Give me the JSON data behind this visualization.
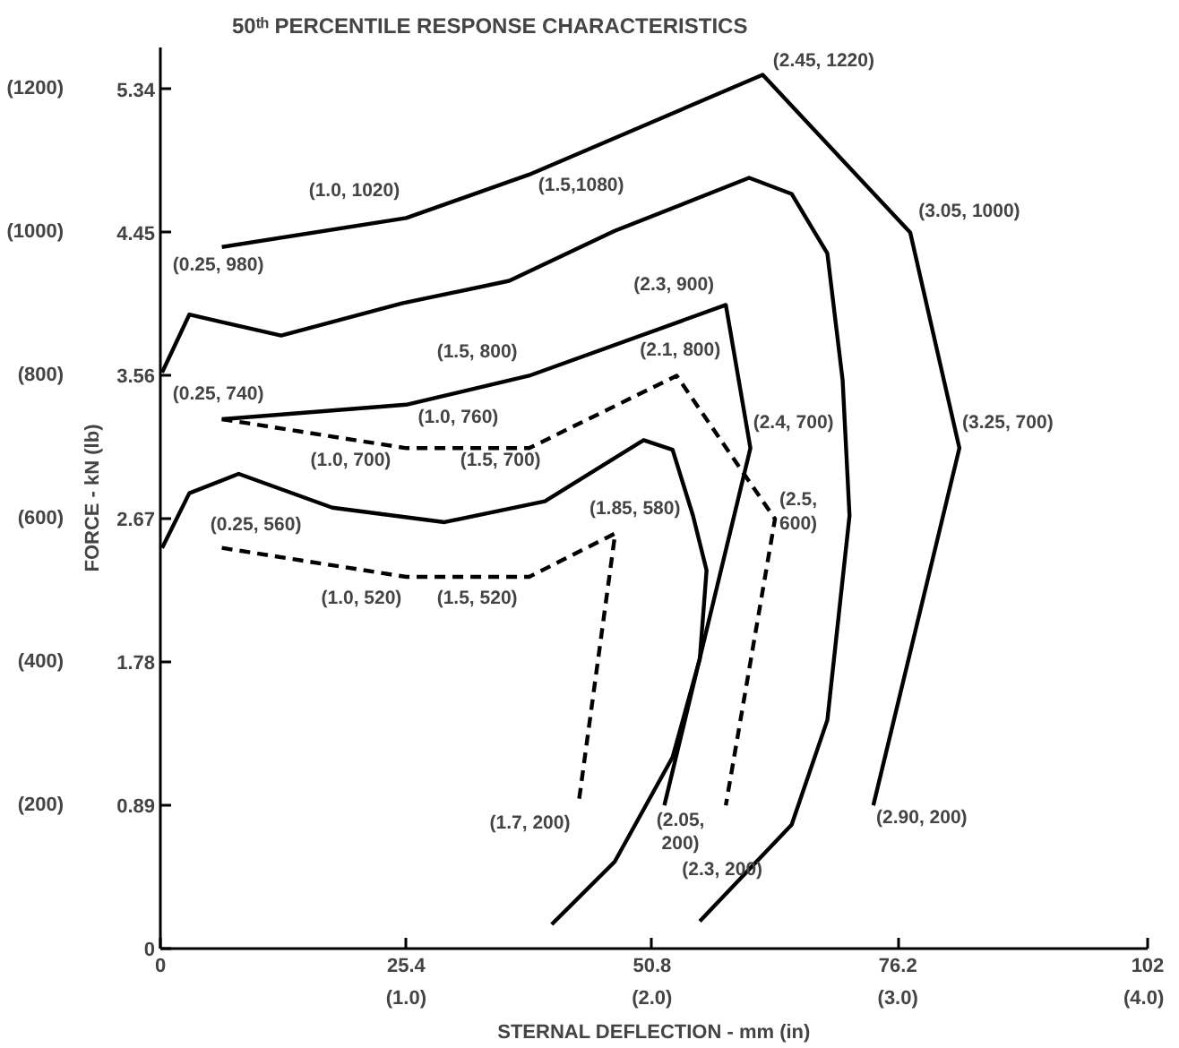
{
  "chart_data": {
    "type": "line",
    "title": "50ᵗʰ PERCENTILE RESPONSE CHARACTERISTICS",
    "xlabel": "STERNAL DEFLECTION - mm (in)",
    "ylabel": "FORCE - kN (lb)",
    "xlim": [
      0,
      102
    ],
    "ylim": [
      0,
      5.6
    ],
    "xticks": [
      0,
      25.4,
      50.8,
      76.2,
      102
    ],
    "yticks": [
      0,
      0.89,
      1.78,
      2.67,
      3.56,
      4.45,
      5.34
    ],
    "x2lim": [
      0,
      4.016
    ],
    "x2ticks": [
      {
        "value": 1,
        "label": "(1.0)"
      },
      {
        "value": 2,
        "label": "(2.0)"
      },
      {
        "value": 3,
        "label": "(3.0)"
      },
      {
        "value": 4,
        "label": "(4.0)"
      }
    ],
    "y2lim": [
      0,
      1258
    ],
    "y2ticks": [
      {
        "value": 200,
        "label": "(200)"
      },
      {
        "value": 400,
        "label": "(400)"
      },
      {
        "value": 600,
        "label": "(600)"
      },
      {
        "value": 800,
        "label": "(800)"
      },
      {
        "value": 1000,
        "label": "(1000)"
      },
      {
        "value": 1200,
        "label": "(1200)"
      }
    ],
    "grid": false,
    "marker": "none",
    "series": [
      {
        "color": "#000000",
        "line_style": "solid",
        "x": [
          6.35,
          25.4,
          38.1,
          62.23,
          77.47,
          82.55,
          73.66
        ],
        "values": [
          4.36,
          4.54,
          4.81,
          5.43,
          4.45,
          3.11,
          0.89
        ]
      },
      {
        "color": "#000000",
        "line_style": "solid",
        "x": [
          6.35,
          25.4,
          38.1,
          58.42,
          60.96,
          52.07
        ],
        "values": [
          3.29,
          3.38,
          3.56,
          4.0,
          3.11,
          0.89
        ]
      },
      {
        "color": "#000000",
        "line_style": "dashed",
        "x": [
          6.35,
          25.4,
          38.1,
          53.34,
          63.5,
          58.42
        ],
        "values": [
          3.29,
          3.11,
          3.11,
          3.56,
          2.67,
          0.89
        ]
      },
      {
        "color": "#000000",
        "line_style": "dashed",
        "x": [
          6.35,
          25.4,
          38.1,
          46.99,
          43.18
        ],
        "values": [
          2.49,
          2.31,
          2.31,
          2.58,
          0.89
        ]
      },
      {
        "color": "#000000",
        "line_style": "solid",
        "x": [
          0.18,
          2.99,
          12.48,
          24.96,
          36.04,
          46.94,
          60.83,
          65.22,
          68.91,
          70.49,
          71.2,
          68.91,
          65.22,
          55.73
        ],
        "values": [
          3.58,
          3.94,
          3.81,
          4.01,
          4.15,
          4.46,
          4.79,
          4.69,
          4.32,
          3.53,
          2.69,
          1.42,
          0.77,
          0.17
        ]
      },
      {
        "color": "#000000",
        "line_style": "solid",
        "x": [
          0.18,
          2.99,
          8.09,
          17.76,
          29.36,
          39.73,
          49.93,
          52.92,
          55.03,
          56.43,
          55.73,
          52.92,
          46.94,
          40.43
        ],
        "values": [
          2.49,
          2.83,
          2.95,
          2.74,
          2.65,
          2.78,
          3.16,
          3.1,
          2.69,
          2.35,
          1.8,
          1.19,
          0.54,
          0.15
        ]
      }
    ],
    "annotations": [
      {
        "text": "(0.25, 980)",
        "x": 6.35,
        "y": 4.36
      },
      {
        "text": "(1.0, 1020)",
        "x": 25.4,
        "y": 4.54
      },
      {
        "text": "(1.5,1080)",
        "x": 38.1,
        "y": 4.81
      },
      {
        "text": "(2.45, 1220)",
        "x": 62.23,
        "y": 5.43
      },
      {
        "text": "(3.05, 1000)",
        "x": 77.47,
        "y": 4.45
      },
      {
        "text": "(3.25, 700)",
        "x": 82.55,
        "y": 3.11
      },
      {
        "text": "(2.90, 200)",
        "x": 73.66,
        "y": 0.89
      },
      {
        "text": "(0.25, 740)",
        "x": 6.35,
        "y": 3.29
      },
      {
        "text": "(1.0, 760)",
        "x": 25.4,
        "y": 3.38
      },
      {
        "text": "(1.5, 800)",
        "x": 38.1,
        "y": 3.56
      },
      {
        "text": "(2.3, 900)",
        "x": 58.42,
        "y": 4.0
      },
      {
        "text": "(2.4, 700)",
        "x": 60.96,
        "y": 3.11
      },
      {
        "text": "(2.05, 200)",
        "x": 52.07,
        "y": 0.89
      },
      {
        "text": "(1.0, 700)",
        "x": 25.4,
        "y": 3.11
      },
      {
        "text": "(1.5, 700)",
        "x": 38.1,
        "y": 3.11
      },
      {
        "text": "(2.1, 800)",
        "x": 53.34,
        "y": 3.56
      },
      {
        "text": "(2.5, 600)",
        "x": 63.5,
        "y": 2.67
      },
      {
        "text": "(2.3, 200)",
        "x": 58.42,
        "y": 0.89
      },
      {
        "text": "(0.25, 560)",
        "x": 6.35,
        "y": 2.49
      },
      {
        "text": "(1.0, 520)",
        "x": 25.4,
        "y": 2.31
      },
      {
        "text": "(1.5, 520)",
        "x": 38.1,
        "y": 2.31
      },
      {
        "text": "(1.85, 580)",
        "x": 46.99,
        "y": 2.58
      },
      {
        "text": "(1.7, 200)",
        "x": 43.18,
        "y": 0.89
      }
    ]
  }
}
